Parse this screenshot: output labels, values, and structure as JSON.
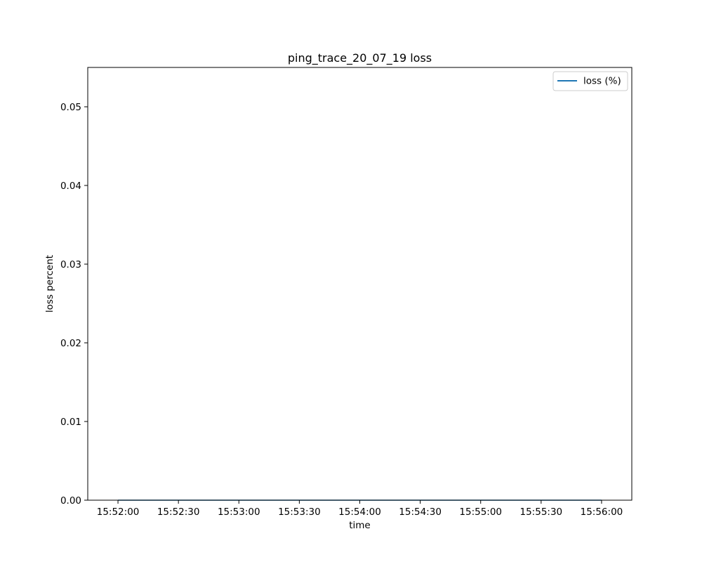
{
  "chart_data": {
    "type": "line",
    "title": "ping_trace_20_07_19 loss",
    "xlabel": "time",
    "ylabel": "loss percent",
    "x_ticks": [
      "15:52:00",
      "15:52:30",
      "15:53:00",
      "15:53:30",
      "15:54:00",
      "15:54:30",
      "15:55:00",
      "15:55:30",
      "15:56:00"
    ],
    "y_ticks": [
      "0.00",
      "0.01",
      "0.02",
      "0.03",
      "0.04",
      "0.05"
    ],
    "xlim": [
      "15:51:45",
      "15:56:15"
    ],
    "ylim": [
      0,
      0.055
    ],
    "grid": false,
    "legend_position": "top-right",
    "series": [
      {
        "name": "loss (%)",
        "color": "#1f77b4",
        "x": [
          "15:52:00",
          "15:56:00"
        ],
        "y": [
          0,
          0
        ]
      }
    ]
  }
}
